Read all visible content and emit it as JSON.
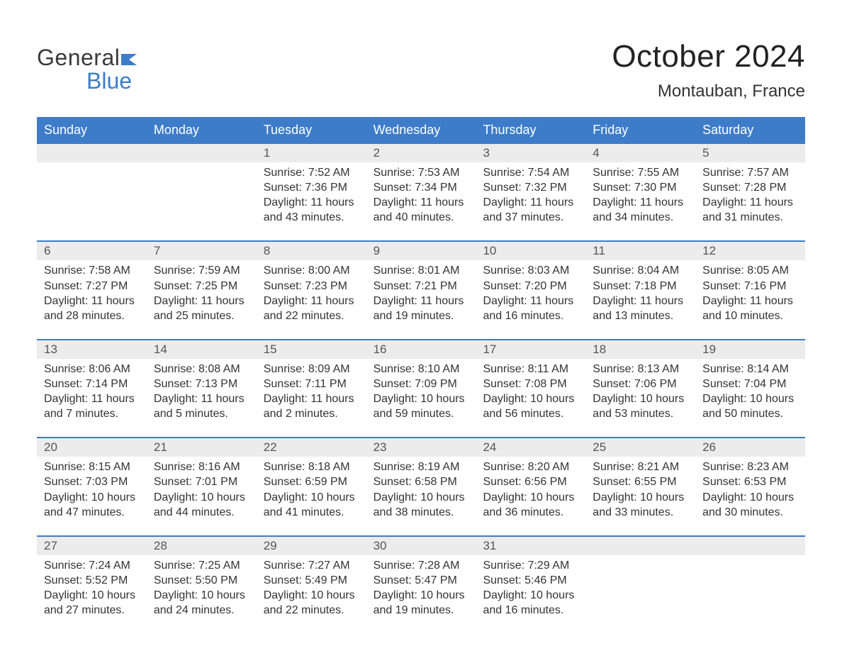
{
  "brand": {
    "line1": "General",
    "line2": "Blue",
    "accent_color": "#3d7cc9"
  },
  "title": "October 2024",
  "subtitle": "Montauban, France",
  "colors": {
    "header_bg": "#3d7cc9",
    "header_text": "#ffffff",
    "daynum_bg": "#ececec",
    "text": "#333333",
    "background": "#ffffff"
  },
  "font": {
    "family": "Arial",
    "title_size_pt": 33,
    "subtitle_size_pt": 18,
    "body_size_pt": 12
  },
  "day_headers": [
    "Sunday",
    "Monday",
    "Tuesday",
    "Wednesday",
    "Thursday",
    "Friday",
    "Saturday"
  ],
  "weeks": [
    [
      {
        "num": "",
        "sunrise": "",
        "sunset": "",
        "daylight": ""
      },
      {
        "num": "",
        "sunrise": "",
        "sunset": "",
        "daylight": ""
      },
      {
        "num": "1",
        "sunrise": "Sunrise: 7:52 AM",
        "sunset": "Sunset: 7:36 PM",
        "daylight": "Daylight: 11 hours and 43 minutes."
      },
      {
        "num": "2",
        "sunrise": "Sunrise: 7:53 AM",
        "sunset": "Sunset: 7:34 PM",
        "daylight": "Daylight: 11 hours and 40 minutes."
      },
      {
        "num": "3",
        "sunrise": "Sunrise: 7:54 AM",
        "sunset": "Sunset: 7:32 PM",
        "daylight": "Daylight: 11 hours and 37 minutes."
      },
      {
        "num": "4",
        "sunrise": "Sunrise: 7:55 AM",
        "sunset": "Sunset: 7:30 PM",
        "daylight": "Daylight: 11 hours and 34 minutes."
      },
      {
        "num": "5",
        "sunrise": "Sunrise: 7:57 AM",
        "sunset": "Sunset: 7:28 PM",
        "daylight": "Daylight: 11 hours and 31 minutes."
      }
    ],
    [
      {
        "num": "6",
        "sunrise": "Sunrise: 7:58 AM",
        "sunset": "Sunset: 7:27 PM",
        "daylight": "Daylight: 11 hours and 28 minutes."
      },
      {
        "num": "7",
        "sunrise": "Sunrise: 7:59 AM",
        "sunset": "Sunset: 7:25 PM",
        "daylight": "Daylight: 11 hours and 25 minutes."
      },
      {
        "num": "8",
        "sunrise": "Sunrise: 8:00 AM",
        "sunset": "Sunset: 7:23 PM",
        "daylight": "Daylight: 11 hours and 22 minutes."
      },
      {
        "num": "9",
        "sunrise": "Sunrise: 8:01 AM",
        "sunset": "Sunset: 7:21 PM",
        "daylight": "Daylight: 11 hours and 19 minutes."
      },
      {
        "num": "10",
        "sunrise": "Sunrise: 8:03 AM",
        "sunset": "Sunset: 7:20 PM",
        "daylight": "Daylight: 11 hours and 16 minutes."
      },
      {
        "num": "11",
        "sunrise": "Sunrise: 8:04 AM",
        "sunset": "Sunset: 7:18 PM",
        "daylight": "Daylight: 11 hours and 13 minutes."
      },
      {
        "num": "12",
        "sunrise": "Sunrise: 8:05 AM",
        "sunset": "Sunset: 7:16 PM",
        "daylight": "Daylight: 11 hours and 10 minutes."
      }
    ],
    [
      {
        "num": "13",
        "sunrise": "Sunrise: 8:06 AM",
        "sunset": "Sunset: 7:14 PM",
        "daylight": "Daylight: 11 hours and 7 minutes."
      },
      {
        "num": "14",
        "sunrise": "Sunrise: 8:08 AM",
        "sunset": "Sunset: 7:13 PM",
        "daylight": "Daylight: 11 hours and 5 minutes."
      },
      {
        "num": "15",
        "sunrise": "Sunrise: 8:09 AM",
        "sunset": "Sunset: 7:11 PM",
        "daylight": "Daylight: 11 hours and 2 minutes."
      },
      {
        "num": "16",
        "sunrise": "Sunrise: 8:10 AM",
        "sunset": "Sunset: 7:09 PM",
        "daylight": "Daylight: 10 hours and 59 minutes."
      },
      {
        "num": "17",
        "sunrise": "Sunrise: 8:11 AM",
        "sunset": "Sunset: 7:08 PM",
        "daylight": "Daylight: 10 hours and 56 minutes."
      },
      {
        "num": "18",
        "sunrise": "Sunrise: 8:13 AM",
        "sunset": "Sunset: 7:06 PM",
        "daylight": "Daylight: 10 hours and 53 minutes."
      },
      {
        "num": "19",
        "sunrise": "Sunrise: 8:14 AM",
        "sunset": "Sunset: 7:04 PM",
        "daylight": "Daylight: 10 hours and 50 minutes."
      }
    ],
    [
      {
        "num": "20",
        "sunrise": "Sunrise: 8:15 AM",
        "sunset": "Sunset: 7:03 PM",
        "daylight": "Daylight: 10 hours and 47 minutes."
      },
      {
        "num": "21",
        "sunrise": "Sunrise: 8:16 AM",
        "sunset": "Sunset: 7:01 PM",
        "daylight": "Daylight: 10 hours and 44 minutes."
      },
      {
        "num": "22",
        "sunrise": "Sunrise: 8:18 AM",
        "sunset": "Sunset: 6:59 PM",
        "daylight": "Daylight: 10 hours and 41 minutes."
      },
      {
        "num": "23",
        "sunrise": "Sunrise: 8:19 AM",
        "sunset": "Sunset: 6:58 PM",
        "daylight": "Daylight: 10 hours and 38 minutes."
      },
      {
        "num": "24",
        "sunrise": "Sunrise: 8:20 AM",
        "sunset": "Sunset: 6:56 PM",
        "daylight": "Daylight: 10 hours and 36 minutes."
      },
      {
        "num": "25",
        "sunrise": "Sunrise: 8:21 AM",
        "sunset": "Sunset: 6:55 PM",
        "daylight": "Daylight: 10 hours and 33 minutes."
      },
      {
        "num": "26",
        "sunrise": "Sunrise: 8:23 AM",
        "sunset": "Sunset: 6:53 PM",
        "daylight": "Daylight: 10 hours and 30 minutes."
      }
    ],
    [
      {
        "num": "27",
        "sunrise": "Sunrise: 7:24 AM",
        "sunset": "Sunset: 5:52 PM",
        "daylight": "Daylight: 10 hours and 27 minutes."
      },
      {
        "num": "28",
        "sunrise": "Sunrise: 7:25 AM",
        "sunset": "Sunset: 5:50 PM",
        "daylight": "Daylight: 10 hours and 24 minutes."
      },
      {
        "num": "29",
        "sunrise": "Sunrise: 7:27 AM",
        "sunset": "Sunset: 5:49 PM",
        "daylight": "Daylight: 10 hours and 22 minutes."
      },
      {
        "num": "30",
        "sunrise": "Sunrise: 7:28 AM",
        "sunset": "Sunset: 5:47 PM",
        "daylight": "Daylight: 10 hours and 19 minutes."
      },
      {
        "num": "31",
        "sunrise": "Sunrise: 7:29 AM",
        "sunset": "Sunset: 5:46 PM",
        "daylight": "Daylight: 10 hours and 16 minutes."
      },
      {
        "num": "",
        "sunrise": "",
        "sunset": "",
        "daylight": ""
      },
      {
        "num": "",
        "sunrise": "",
        "sunset": "",
        "daylight": ""
      }
    ]
  ]
}
